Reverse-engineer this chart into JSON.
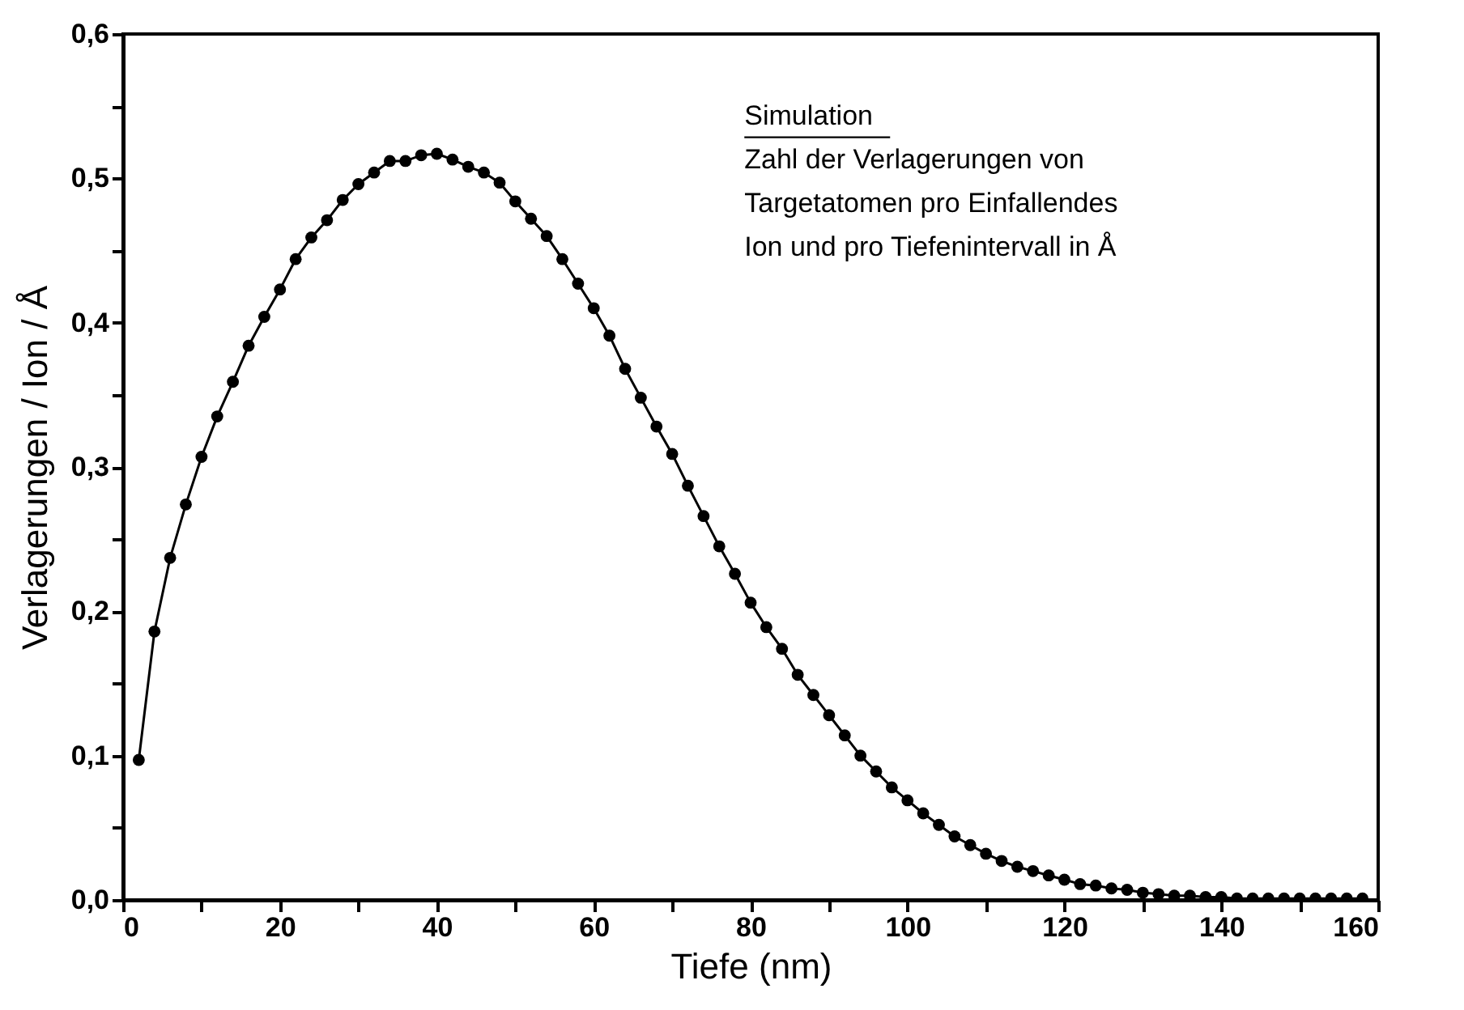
{
  "chart_data": {
    "type": "line",
    "xlabel": "Tiefe (nm)",
    "ylabel": "Verlagerungen / Ion / Å",
    "annotations": [
      "Simulation",
      "Zahl der Verlagerungen von",
      "Targetatomen pro Einfallendes",
      "Ion und pro Tiefenintervall in Å"
    ],
    "x": [
      2,
      4,
      6,
      8,
      10,
      12,
      14,
      16,
      18,
      20,
      22,
      24,
      26,
      28,
      30,
      32,
      34,
      36,
      38,
      40,
      42,
      44,
      46,
      48,
      50,
      52,
      54,
      56,
      58,
      60,
      62,
      64,
      66,
      68,
      70,
      72,
      74,
      76,
      78,
      80,
      82,
      84,
      86,
      88,
      90,
      92,
      94,
      96,
      98,
      100,
      102,
      104,
      106,
      108,
      110,
      112,
      114,
      116,
      118,
      120,
      122,
      124,
      126,
      128,
      130,
      132,
      134,
      136,
      138,
      140,
      142,
      144,
      146,
      148,
      150,
      152,
      154,
      156,
      158
    ],
    "series": [
      {
        "color": "#000000",
        "values": [
          0.097,
          0.186,
          0.237,
          0.274,
          0.307,
          0.335,
          0.359,
          0.384,
          0.404,
          0.423,
          0.444,
          0.459,
          0.471,
          0.485,
          0.496,
          0.504,
          0.512,
          0.512,
          0.516,
          0.517,
          0.513,
          0.508,
          0.504,
          0.497,
          0.484,
          0.472,
          0.46,
          0.444,
          0.427,
          0.41,
          0.391,
          0.368,
          0.348,
          0.328,
          0.309,
          0.287,
          0.266,
          0.245,
          0.226,
          0.206,
          0.189,
          0.174,
          0.156,
          0.142,
          0.128,
          0.114,
          0.1,
          0.089,
          0.078,
          0.069,
          0.06,
          0.052,
          0.044,
          0.038,
          0.032,
          0.027,
          0.023,
          0.02,
          0.017,
          0.014,
          0.011,
          0.01,
          0.008,
          0.007,
          0.005,
          0.004,
          0.003,
          0.003,
          0.002,
          0.002,
          0.001,
          0.001,
          0.001,
          0.001,
          0.001,
          0.001,
          0.001,
          0.001,
          0.001
        ]
      }
    ],
    "xlim": [
      0,
      160
    ],
    "xticks": [
      0,
      {
        "value": 10,
        "label": null
      },
      20,
      {
        "value": 30,
        "label": null
      },
      40,
      {
        "value": 50,
        "label": null
      },
      60,
      {
        "value": 70,
        "label": null
      },
      80,
      {
        "value": 90,
        "label": null
      },
      100,
      {
        "value": 110,
        "label": null
      },
      120,
      {
        "value": 130,
        "label": null
      },
      140,
      {
        "value": 150,
        "label": null
      },
      160
    ],
    "ylim": [
      0,
      0.6
    ],
    "yticks": [
      {
        "value": 0,
        "label": "0,0"
      },
      {
        "value": 0.05,
        "label": null
      },
      {
        "value": 0.1,
        "label": "0,1"
      },
      {
        "value": 0.15,
        "label": null
      },
      {
        "value": 0.2,
        "label": "0,2"
      },
      {
        "value": 0.25,
        "label": null
      },
      {
        "value": 0.3,
        "label": "0,3"
      },
      {
        "value": 0.35,
        "label": null
      },
      {
        "value": 0.4,
        "label": "0,4"
      },
      {
        "value": 0.45,
        "label": null
      },
      {
        "value": 0.5,
        "label": "0,5"
      },
      {
        "value": 0.55,
        "label": null
      },
      {
        "value": 0.6,
        "label": "0,6"
      }
    ],
    "grid": false,
    "marker": "circle",
    "line_style": "solid"
  }
}
